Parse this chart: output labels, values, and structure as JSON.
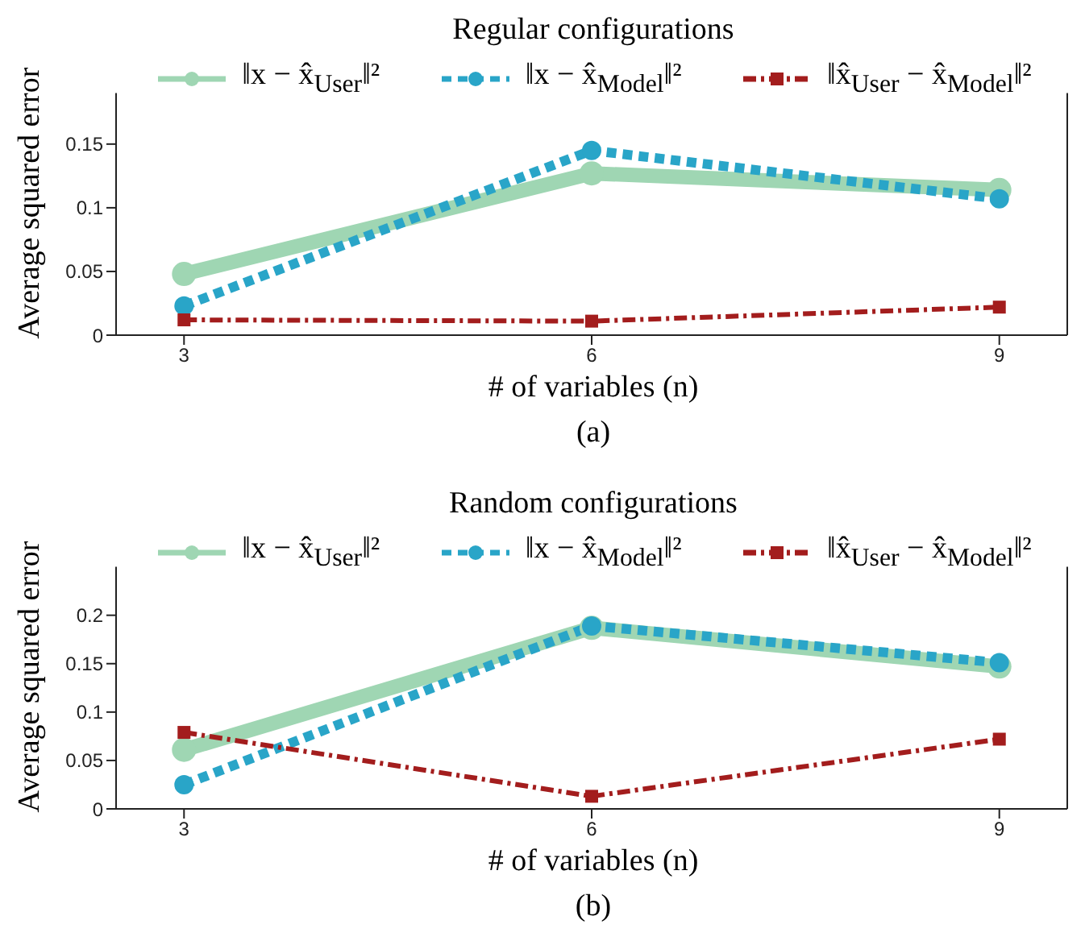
{
  "chart_data": [
    {
      "type": "line",
      "title": "Regular configurations",
      "xlabel": "# of variables (n)",
      "ylabel": "Average squared error",
      "x": [
        3,
        6,
        9
      ],
      "xlim": [
        2.5,
        9.5
      ],
      "xticks": [
        3,
        6,
        9
      ],
      "ylim": [
        0,
        0.19
      ],
      "yticks": [
        0,
        0.05,
        0.1,
        0.15
      ],
      "legend": "top",
      "annotations": [
        "(a)"
      ],
      "series": [
        {
          "name": "‖x − x̂$_{User}$‖²",
          "color": "#9fd6b3",
          "values": [
            0.048,
            0.127,
            0.114
          ],
          "marker": "circle",
          "line_style": "solid"
        },
        {
          "name": "‖x − x̂$_{Model}$‖²",
          "color": "#29a5c8",
          "values": [
            0.023,
            0.145,
            0.107
          ],
          "marker": "circle",
          "line_style": "dashed"
        },
        {
          "name": "‖x̂$_{User}$ − x̂$_{Model}$‖²",
          "color": "#a31d1d",
          "values": [
            0.012,
            0.011,
            0.022
          ],
          "marker": "square",
          "line_style": "dashdot"
        }
      ]
    },
    {
      "type": "line",
      "title": "Random configurations",
      "xlabel": "# of variables (n)",
      "ylabel": "Average squared error",
      "x": [
        3,
        6,
        9
      ],
      "xlim": [
        2.5,
        9.5
      ],
      "xticks": [
        3,
        6,
        9
      ],
      "ylim": [
        0,
        0.25
      ],
      "yticks": [
        0,
        0.05,
        0.1,
        0.15,
        0.2
      ],
      "legend": "top",
      "annotations": [
        "(b)"
      ],
      "series": [
        {
          "name": "‖x − x̂$_{User}$‖²",
          "color": "#9fd6b3",
          "values": [
            0.061,
            0.187,
            0.147
          ],
          "marker": "circle",
          "line_style": "solid"
        },
        {
          "name": "‖x − x̂$_{Model}$‖²",
          "color": "#29a5c8",
          "values": [
            0.025,
            0.189,
            0.151
          ],
          "marker": "circle",
          "line_style": "dashed"
        },
        {
          "name": "‖x̂$_{User}$ − x̂$_{Model}$‖²",
          "color": "#a31d1d",
          "values": [
            0.079,
            0.013,
            0.072
          ],
          "marker": "square",
          "line_style": "dashdot"
        }
      ]
    }
  ]
}
